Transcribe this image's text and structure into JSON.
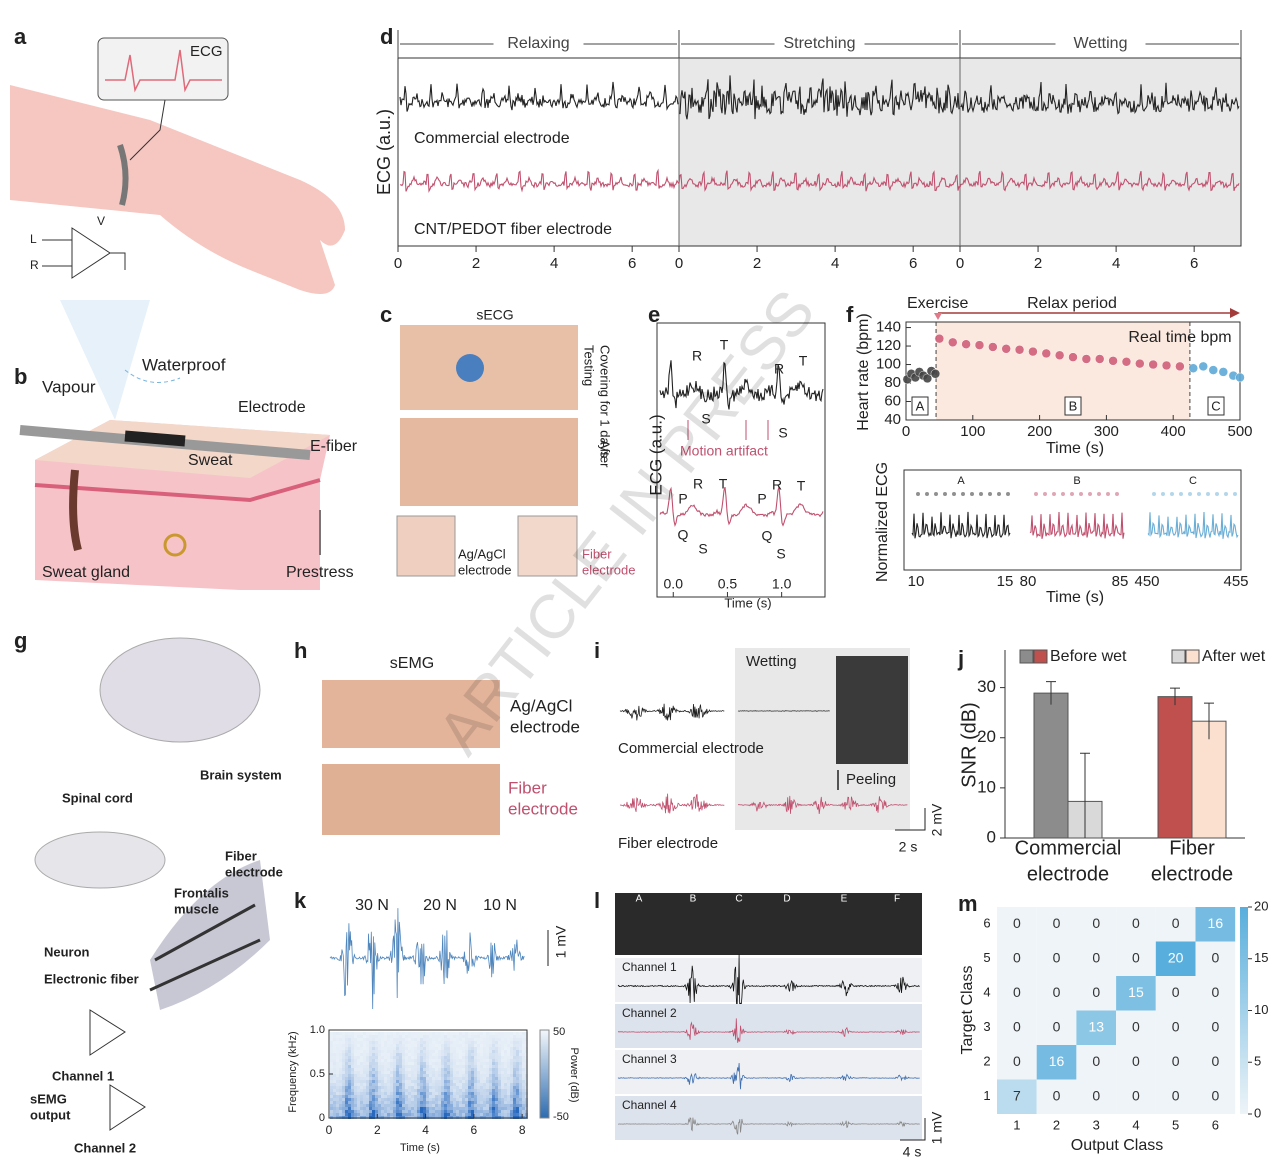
{
  "panel_labels": [
    "a",
    "b",
    "c",
    "d",
    "e",
    "f",
    "g",
    "h",
    "i",
    "j",
    "k",
    "l",
    "m"
  ],
  "watermark": "ARTICLE IN PRESS",
  "a": {
    "monitor": "ECG",
    "amp_v": "V",
    "amp_l": "L",
    "amp_r": "R"
  },
  "b": {
    "waterproof": "Waterproof",
    "vapour": "Vapour",
    "electrode": "Electrode",
    "efiber": "E-fiber",
    "sweat": "Sweat",
    "sweat_gland": "Sweat gland",
    "prestress": "Prestress"
  },
  "c": {
    "title": "sECG",
    "side": [
      "Covering for 1 days",
      "Testing",
      "After"
    ],
    "electrodes": [
      [
        "Ag/AgCl",
        "electrode"
      ],
      [
        "Fiber",
        "electrode"
      ]
    ]
  },
  "d": {
    "type": "line",
    "phases": [
      "Relaxing",
      "Stretching",
      "Wetting"
    ],
    "ylabel": "ECG (a.u.)",
    "traces": [
      {
        "name": "Commercial electrode",
        "color": "#222222"
      },
      {
        "name": "CNT/PEDOT fiber electrode",
        "color": "#c0506e"
      }
    ],
    "xlim": [
      0,
      7.2
    ],
    "xticks": [
      0,
      2,
      4,
      6
    ]
  },
  "e": {
    "type": "line",
    "ylabel": "ECG (a.u.)",
    "xlabel": "Time (s)",
    "xlim": [
      -0.15,
      1.4
    ],
    "xticks": [
      {
        "value": 0,
        "label": "0.0"
      },
      0.5,
      {
        "value": 1,
        "label": "1.0"
      }
    ],
    "top_peaks": [
      "R",
      "T",
      "S",
      "R",
      "S",
      "T"
    ],
    "annotation": "Motion artifact",
    "bottom_peaks": [
      "P",
      "R",
      "T",
      "Q",
      "S",
      "P",
      "R",
      "T",
      "Q",
      "S"
    ]
  },
  "f": {
    "type": "scatter",
    "events": [
      "Exercise",
      "Relax period",
      "Real time bpm"
    ],
    "ylabel": "Heart rate (bpm)",
    "xlabel": "Time (s)",
    "ylim": [
      40,
      146
    ],
    "yticks": [
      40,
      60,
      80,
      100,
      120,
      140
    ],
    "xlim": [
      0,
      500
    ],
    "xticks": [
      0,
      100,
      200,
      300,
      400,
      500
    ],
    "regions": [
      "A",
      "B",
      "C"
    ],
    "series": [
      {
        "name": "A",
        "color": "#444444",
        "x": [
          2,
          8,
          14,
          20,
          26,
          32,
          38,
          44
        ],
        "values": [
          84,
          90,
          86,
          92,
          88,
          85,
          93,
          90
        ]
      },
      {
        "name": "B",
        "color": "#d0607a",
        "x": [
          50,
          70,
          90,
          110,
          130,
          150,
          170,
          190,
          210,
          230,
          250,
          270,
          290,
          310,
          330,
          350,
          370,
          390,
          410
        ],
        "values": [
          128,
          124,
          122,
          121,
          119,
          117,
          116,
          114,
          112,
          110,
          108,
          106,
          106,
          104,
          103,
          101,
          100,
          99,
          98
        ]
      },
      {
        "name": "C",
        "color": "#5fa9d6",
        "x": [
          430,
          445,
          460,
          475,
          490,
          500
        ],
        "values": [
          96,
          98,
          94,
          92,
          88,
          86
        ]
      }
    ],
    "ecg": {
      "ylabel": "Normalized ECG",
      "xlabel": "Time (s)",
      "segments": [
        {
          "name": "A",
          "xticks": [
            10,
            15
          ],
          "color": "#222222"
        },
        {
          "name": "B",
          "xticks": [
            80,
            85
          ],
          "color": "#c0506e"
        },
        {
          "name": "C",
          "xticks": [
            450,
            455
          ],
          "color": "#6aaed6"
        }
      ]
    }
  },
  "g": {
    "brain": "Brain system",
    "spinal": "Spinal cord",
    "muscle": [
      "Frontalis",
      "muscle"
    ],
    "fiber": [
      "Fiber",
      "electrode"
    ],
    "neuron": "Neuron",
    "efiber": "Electronic fiber",
    "ch1": "Channel 1",
    "output": [
      "sEMG",
      "output"
    ],
    "ch2": "Channel 2"
  },
  "h": {
    "title": "sEMG",
    "electrodes": [
      [
        "Ag/AgCl",
        "electrode"
      ],
      [
        "Fiber",
        "electrode"
      ]
    ]
  },
  "i": {
    "wetting": "Wetting",
    "commercial": "Commercial electrode",
    "fiber": "Fiber electrode",
    "peeling": "Peeling",
    "scale_y": "2 mV",
    "scale_x": "2 s"
  },
  "j": {
    "type": "bar",
    "ylabel": "SNR (dB)",
    "ylim": [
      0,
      37.5
    ],
    "yticks": [
      0,
      10,
      20,
      30
    ],
    "categories": [
      [
        "Commercial",
        "electrode"
      ],
      [
        "Fiber",
        "electrode"
      ]
    ],
    "series": [
      {
        "name": "Before wet",
        "colors": [
          "#8c8c8c",
          "#c0504d"
        ],
        "values": [
          28.9,
          28.2
        ],
        "errors": [
          2.3,
          1.7
        ]
      },
      {
        "name": "After wet",
        "colors": [
          "#d9d9d9",
          "#fbe0cf"
        ],
        "values": [
          7.3,
          23.3
        ],
        "errors": [
          9.6,
          3.6
        ]
      }
    ]
  },
  "k": {
    "forces": [
      "30 N",
      "20 N",
      "10 N"
    ],
    "scale": "1 mV",
    "ylabel": "Frequency (kHz)",
    "ylim": [
      0,
      1
    ],
    "yticks": [
      0,
      0.5,
      {
        "value": 1,
        "label": "1.0"
      }
    ],
    "xlim": [
      0,
      8.2
    ],
    "xticks": [
      0,
      2,
      4,
      6,
      8
    ],
    "xlabel": "Time (s)",
    "colorbar": {
      "label": "Power (dB)",
      "ticks": [
        50,
        -50
      ]
    }
  },
  "l": {
    "gestures": [
      "A",
      "B",
      "C",
      "D",
      "E",
      "F"
    ],
    "channels": [
      "Channel 1",
      "Channel 2",
      "Channel 3",
      "Channel 4"
    ],
    "scale_y": "1 mV",
    "scale_x": "4 s"
  },
  "m": {
    "type": "heatmap",
    "xlabel": "Output Class",
    "ylabel": "Target Class",
    "row_labels": [
      6,
      5,
      4,
      3,
      2,
      1
    ],
    "col_labels": [
      1,
      2,
      3,
      4,
      5,
      6
    ],
    "matrix": [
      [
        0,
        0,
        0,
        0,
        0,
        16
      ],
      [
        0,
        0,
        0,
        0,
        20,
        0
      ],
      [
        0,
        0,
        0,
        15,
        0,
        0
      ],
      [
        0,
        0,
        13,
        0,
        0,
        0
      ],
      [
        0,
        16,
        0,
        0,
        0,
        0
      ],
      [
        7,
        0,
        0,
        0,
        0,
        0
      ]
    ],
    "clim": [
      0,
      20
    ],
    "colorbar_ticks": [
      0,
      5,
      10,
      15,
      20
    ]
  }
}
